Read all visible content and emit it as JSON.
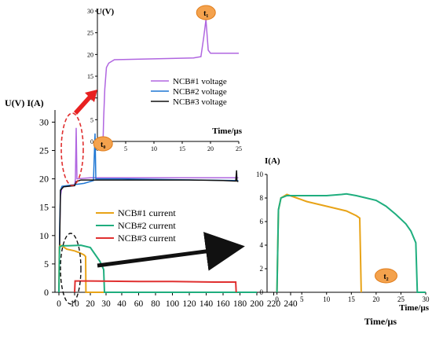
{
  "chart_data": [
    {
      "id": "main",
      "type": "line",
      "ylabel": "U(V) I(A)",
      "xlabel": "Time/μs",
      "xlim": [
        -5,
        250
      ],
      "ylim": [
        0,
        32
      ],
      "xticks": [
        0,
        10,
        20,
        30,
        40,
        60,
        80,
        100,
        120,
        140,
        160,
        180,
        200,
        220,
        240
      ],
      "yticks": [
        0,
        5,
        10,
        15,
        20,
        25,
        30
      ],
      "legend_position": "center",
      "series": [
        {
          "name": "NCB#1 voltage",
          "color": "#b066e0",
          "kind": "voltage",
          "points": [
            [
              0,
              0
            ],
            [
              0.5,
              10
            ],
            [
              1,
              17
            ],
            [
              2,
              18.6
            ],
            [
              10,
              18.8
            ],
            [
              10.5,
              20
            ],
            [
              11,
              29
            ],
            [
              11.5,
              20
            ],
            [
              20,
              20.2
            ],
            [
              178,
              20.2
            ]
          ]
        },
        {
          "name": "NCB#2 voltage",
          "color": "#1f77d4",
          "kind": "voltage",
          "points": [
            [
              0,
              0
            ],
            [
              0.5,
              12
            ],
            [
              1,
              18
            ],
            [
              2,
              18.7
            ],
            [
              16,
              19.2
            ],
            [
              22,
              19.7
            ],
            [
              23,
              28
            ],
            [
              23.5,
              20
            ],
            [
              40,
              20
            ],
            [
              178,
              19.7
            ]
          ]
        },
        {
          "name": "NCB#3 voltage",
          "color": "#111111",
          "kind": "voltage",
          "points": [
            [
              0,
              0
            ],
            [
              1,
              18
            ],
            [
              3,
              18.6
            ],
            [
              10,
              18.8
            ],
            [
              11,
              19.5
            ],
            [
              14,
              19.8
            ],
            [
              120,
              19.8
            ],
            [
              160,
              19.7
            ],
            [
              175,
              19.6
            ],
            [
              176,
              21.5
            ],
            [
              176.5,
              19.6
            ],
            [
              178,
              19.5
            ]
          ]
        },
        {
          "name": "NCB#1 current",
          "color": "#e8a317",
          "kind": "current",
          "points": [
            [
              0,
              0
            ],
            [
              0.3,
              8
            ],
            [
              1,
              8.3
            ],
            [
              3,
              8
            ],
            [
              5,
              7.6
            ],
            [
              10,
              7.3
            ],
            [
              13,
              7
            ],
            [
              16,
              6.6
            ],
            [
              17,
              6.3
            ],
            [
              17.2,
              0
            ],
            [
              200,
              0
            ]
          ]
        },
        {
          "name": "NCB#2 current",
          "color": "#1fae7e",
          "kind": "current",
          "points": [
            [
              0,
              0
            ],
            [
              0.4,
              8
            ],
            [
              2,
              8.2
            ],
            [
              6,
              8.2
            ],
            [
              14,
              8.3
            ],
            [
              20,
              7.9
            ],
            [
              26,
              5.5
            ],
            [
              28.5,
              4
            ],
            [
              29,
              0
            ],
            [
              200,
              0
            ]
          ]
        },
        {
          "name": "NCB#3 current",
          "color": "#e03030",
          "kind": "current",
          "points": [
            [
              10,
              0
            ],
            [
              10.3,
              2
            ],
            [
              20,
              2
            ],
            [
              60,
              1.9
            ],
            [
              100,
              1.9
            ],
            [
              150,
              1.8
            ],
            [
              175,
              1.8
            ],
            [
              175.5,
              0
            ]
          ]
        }
      ],
      "legend": [
        "NCB#1 current",
        "NCB#2 current",
        "NCB#3 current"
      ]
    },
    {
      "id": "inset_voltage",
      "type": "line",
      "ylabel": "U(V)",
      "xlabel": "Time/μs",
      "xlim": [
        0,
        25
      ],
      "ylim": [
        0,
        30
      ],
      "xticks": [
        0,
        5,
        10,
        15,
        20,
        25
      ],
      "yticks": [
        0,
        5,
        10,
        15,
        20,
        25,
        30
      ],
      "legend": [
        "NCB#1 voltage",
        "NCB#2 voltage",
        "NCB#3 voltage"
      ],
      "legend_position": "center-right",
      "markers": [
        {
          "label": "t₁",
          "x": 19.2
        },
        {
          "label": "t₀",
          "x": 1
        }
      ],
      "series": [
        {
          "name": "NCB#1 voltage",
          "color": "#b066e0",
          "points": [
            [
              0,
              0
            ],
            [
              1,
              0
            ],
            [
              1.1,
              5
            ],
            [
              1.3,
              12
            ],
            [
              1.6,
              17
            ],
            [
              2,
              18
            ],
            [
              3,
              18.8
            ],
            [
              10,
              19
            ],
            [
              17,
              19.2
            ],
            [
              18.3,
              19.5
            ],
            [
              18.8,
              24
            ],
            [
              19.2,
              28
            ],
            [
              19.6,
              21
            ],
            [
              20,
              20.3
            ],
            [
              25,
              20.3
            ]
          ]
        }
      ]
    },
    {
      "id": "inset_current",
      "type": "line",
      "ylabel": "I(A)",
      "xlabel": "Time/μs",
      "xlim": [
        -2,
        30
      ],
      "ylim": [
        0,
        10
      ],
      "xticks": [
        0,
        5,
        10,
        15,
        20,
        25,
        30
      ],
      "yticks": [
        0,
        2,
        4,
        6,
        8,
        10
      ],
      "markers": [
        {
          "label": "t₂",
          "x": 22
        }
      ],
      "series": [
        {
          "name": "NCB#1 current",
          "color": "#e8a317",
          "points": [
            [
              0,
              0
            ],
            [
              0.3,
              7
            ],
            [
              0.8,
              8
            ],
            [
              2,
              8.3
            ],
            [
              4,
              8
            ],
            [
              6,
              7.7
            ],
            [
              8,
              7.5
            ],
            [
              10,
              7.3
            ],
            [
              12,
              7.1
            ],
            [
              14,
              6.9
            ],
            [
              16,
              6.5
            ],
            [
              16.7,
              6.3
            ],
            [
              17,
              0
            ]
          ]
        },
        {
          "name": "NCB#2 current",
          "color": "#1fae7e",
          "points": [
            [
              0,
              0
            ],
            [
              0.3,
              7
            ],
            [
              0.8,
              8
            ],
            [
              2,
              8.2
            ],
            [
              6,
              8.2
            ],
            [
              10,
              8.2
            ],
            [
              13,
              8.3
            ],
            [
              14,
              8.35
            ],
            [
              16,
              8.2
            ],
            [
              18,
              8.0
            ],
            [
              20,
              7.8
            ],
            [
              22,
              7.3
            ],
            [
              24,
              6.6
            ],
            [
              26,
              5.8
            ],
            [
              27,
              5.2
            ],
            [
              28,
              4.2
            ],
            [
              28.3,
              0
            ],
            [
              30,
              0
            ]
          ]
        }
      ]
    }
  ]
}
